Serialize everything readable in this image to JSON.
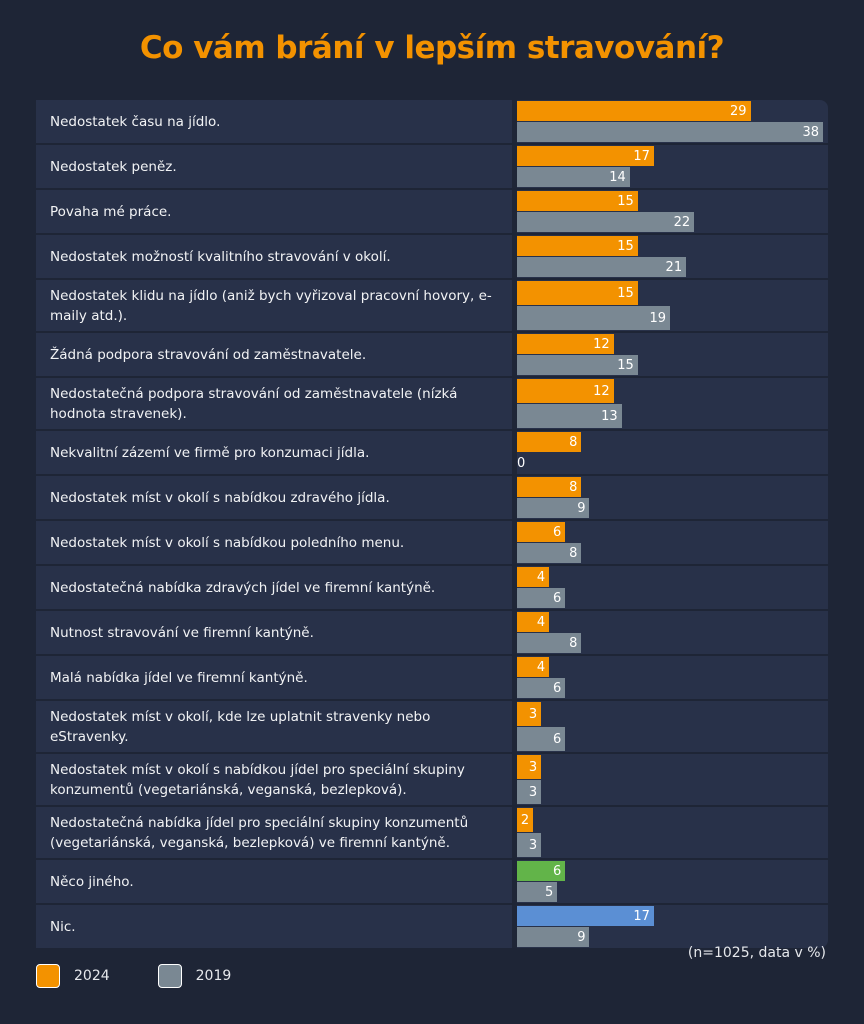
{
  "title": "Co vám brání v lepším stravování?",
  "note": "(n=1025, data v %)",
  "colors": {
    "2024": "#f39200",
    "2019": "#7a8893",
    "other": "#62b449",
    "nothing": "#5b8fd4"
  },
  "chart_data": {
    "type": "bar",
    "orientation": "horizontal",
    "title": "Co vám brání v lepším stravování?",
    "xlim": [
      0,
      38
    ],
    "legend_position": "bottom-left",
    "categories": [
      "Nedostatek času na jídlo.",
      "Nedostatek peněz.",
      "Povaha mé práce.",
      "Nedostatek možností kvalitního stravování v okolí.",
      "Nedostatek klidu na jídlo (aniž bych vyřizoval pracovní hovory, e-maily atd.).",
      "Žádná podpora stravování od zaměstnavatele.",
      "Nedostatečná podpora stravování od zaměstnavatele (nízká hodnota stravenek).",
      "Nekvalitní zázemí ve firmě pro konzumaci jídla.",
      "Nedostatek míst v okolí s nabídkou zdravého jídla.",
      "Nedostatek míst v okolí s nabídkou poledního menu.",
      "Nedostatečná nabídka zdravých jídel ve firemní kantýně.",
      "Nutnost stravování ve firemní kantýně.",
      "Malá nabídka jídel ve firemní kantýně.",
      "Nedostatek míst v okolí, kde lze uplatnit stravenky nebo eStravenky.",
      "Nedostatek míst v okolí s nabídkou jídel pro speciální skupiny konzumentů (vegetariánská, veganská, bezlepková).",
      "Nedostatečná nabídka jídel pro speciální skupiny konzumentů (vegetariánská, veganská, bezlepková) ve firemní kantýně.",
      "Něco jiného.",
      "Nic."
    ],
    "series": [
      {
        "name": "2024",
        "values": [
          29,
          17,
          15,
          15,
          15,
          12,
          12,
          8,
          8,
          6,
          4,
          4,
          4,
          3,
          3,
          2,
          6,
          17
        ]
      },
      {
        "name": "2019",
        "values": [
          38,
          14,
          22,
          21,
          19,
          15,
          13,
          0,
          9,
          8,
          6,
          8,
          6,
          6,
          3,
          3,
          5,
          9
        ]
      }
    ]
  },
  "legend": [
    {
      "label": "2024"
    },
    {
      "label": "2019"
    }
  ]
}
